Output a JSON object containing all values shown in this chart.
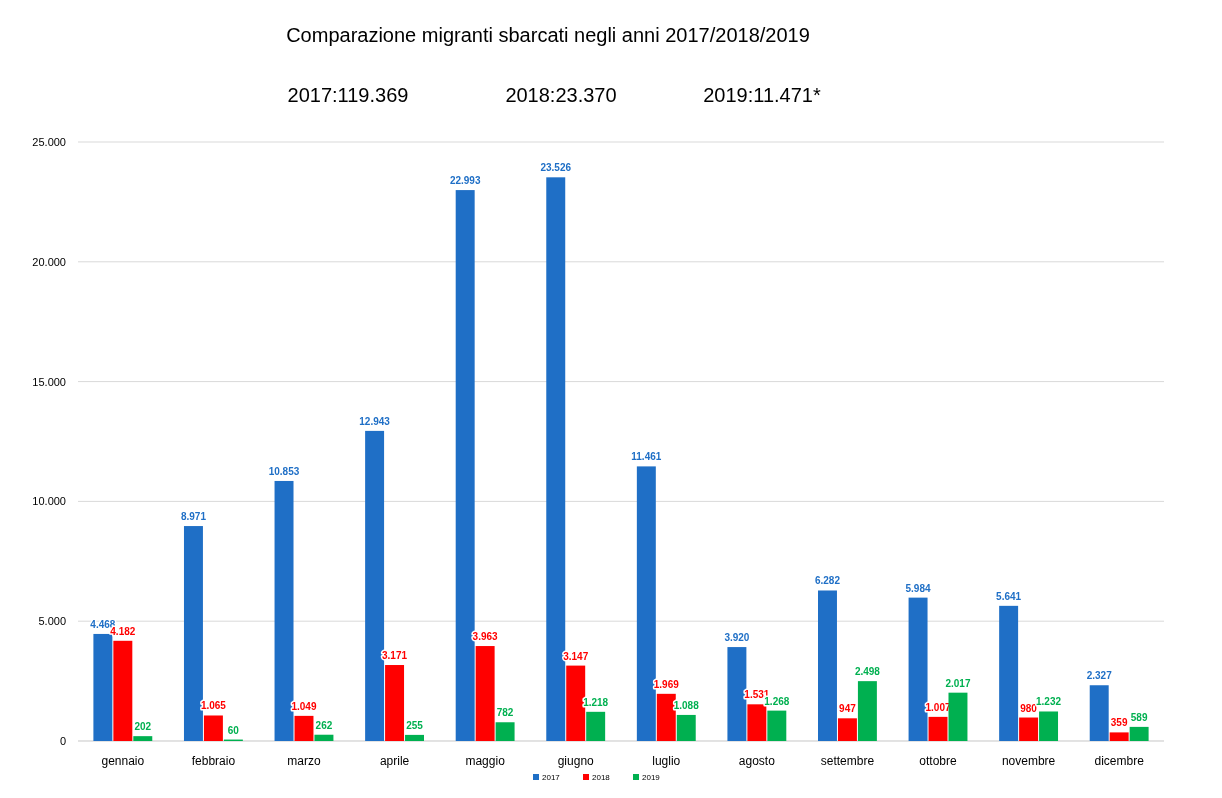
{
  "chart_data": {
    "type": "bar",
    "title": "Comparazione migranti sbarcati negli anni 2017/2018/2019",
    "annotations": [
      "2017:119.369",
      "2018:23.370",
      "2019:11.471*"
    ],
    "categories": [
      "gennaio",
      "febbraio",
      "marzo",
      "aprile",
      "maggio",
      "giugno",
      "luglio",
      "agosto",
      "settembre",
      "ottobre",
      "novembre",
      "dicembre"
    ],
    "series": [
      {
        "name": "2017",
        "color": "#1f6fc6",
        "values": [
          4468,
          8971,
          10853,
          12943,
          22993,
          23526,
          11461,
          3920,
          6282,
          5984,
          5641,
          2327
        ],
        "value_labels": [
          "4.468",
          "8.971",
          "10.853",
          "12.943",
          "22.993",
          "23.526",
          "11.461",
          "3.920",
          "6.282",
          "5.984",
          "5.641",
          "2.327"
        ]
      },
      {
        "name": "2018",
        "color": "#ff0000",
        "values": [
          4182,
          1065,
          1049,
          3171,
          3963,
          3147,
          1969,
          1531,
          947,
          1007,
          980,
          359
        ],
        "value_labels": [
          "4.182",
          "1.065",
          "1.049",
          "3.171",
          "3.963",
          "3.147",
          "1.969",
          "1.531",
          "947",
          "1.007",
          "980",
          "359"
        ]
      },
      {
        "name": "2019",
        "color": "#00b050",
        "values": [
          202,
          60,
          262,
          255,
          782,
          1218,
          1088,
          1268,
          2498,
          2017,
          1232,
          589
        ],
        "value_labels": [
          "202",
          "60",
          "262",
          "255",
          "782",
          "1.218",
          "1.088",
          "1.268",
          "2.498",
          "2.017",
          "1.232",
          "589"
        ]
      }
    ],
    "ylim": [
      0,
      25000
    ],
    "yticks": [
      {
        "value": 0,
        "label": "0"
      },
      {
        "value": 5000,
        "label": "5.000"
      },
      {
        "value": 10000,
        "label": "10.000"
      },
      {
        "value": 15000,
        "label": "15.000"
      },
      {
        "value": 20000,
        "label": "20.000"
      },
      {
        "value": 25000,
        "label": "25.000"
      }
    ],
    "grid": "y",
    "legend": "bottom"
  }
}
